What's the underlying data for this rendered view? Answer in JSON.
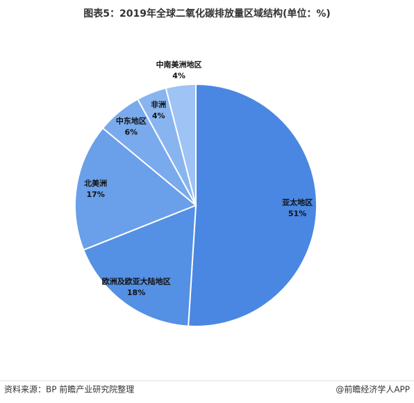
{
  "chart_data": {
    "type": "pie",
    "title": "图表5：2019年全球二氧化碳排放量区域结构(单位：%)",
    "categories": [
      "亚太地区",
      "欧洲及欧亚大陆地区",
      "北美洲",
      "中东地区",
      "非洲",
      "中南美洲地区"
    ],
    "values": [
      51,
      18,
      17,
      6,
      4,
      4
    ],
    "value_labels": [
      "51%",
      "18%",
      "17%",
      "6%",
      "4%",
      "4%"
    ],
    "colors": [
      "#4a87e2",
      "#5490e4",
      "#6a9fe9",
      "#79aaed",
      "#88b5f0",
      "#9ec3f4"
    ],
    "source": "资料来源：BP 前瞻产业研究院整理",
    "credit": "@前瞻经济学人APP"
  }
}
